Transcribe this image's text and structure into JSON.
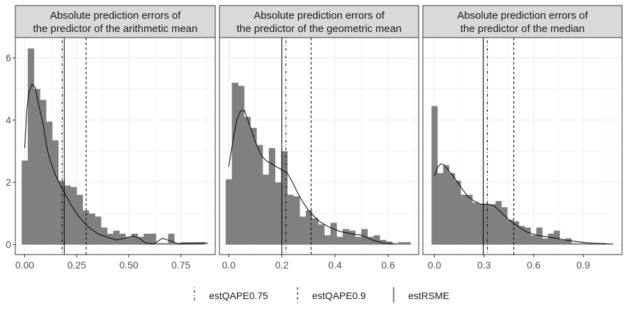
{
  "chart_data": [
    {
      "type": "bar",
      "title_lines": [
        "Absolute prediction errors of",
        "the predictor of the arithmetic mean"
      ],
      "bin_width": 0.0293,
      "bin_start": -0.0146,
      "values": [
        2.7,
        6.3,
        5.0,
        4.65,
        3.95,
        3.35,
        2.05,
        1.9,
        1.85,
        1.6,
        1.1,
        1.0,
        0.9,
        0.55,
        0.35,
        0.45,
        0.35,
        0.25,
        0.35,
        0.25,
        0.35,
        0.35,
        0.05,
        0.05,
        0.35,
        0.05,
        0.08,
        0.08,
        0.08,
        0.08
      ],
      "density": [
        [
          0.0,
          3.1
        ],
        [
          0.01,
          4.3
        ],
        [
          0.02,
          4.9
        ],
        [
          0.035,
          5.15
        ],
        [
          0.05,
          5.05
        ],
        [
          0.07,
          4.4
        ],
        [
          0.09,
          3.8
        ],
        [
          0.11,
          3.0
        ],
        [
          0.13,
          2.55
        ],
        [
          0.15,
          2.2
        ],
        [
          0.18,
          1.8
        ],
        [
          0.2,
          1.55
        ],
        [
          0.23,
          1.2
        ],
        [
          0.26,
          0.9
        ],
        [
          0.3,
          0.6
        ],
        [
          0.35,
          0.35
        ],
        [
          0.4,
          0.23
        ],
        [
          0.44,
          0.15
        ],
        [
          0.48,
          0.2
        ],
        [
          0.52,
          0.28
        ],
        [
          0.55,
          0.2
        ],
        [
          0.58,
          0.05
        ],
        [
          0.62,
          0.02
        ],
        [
          0.66,
          0.2
        ],
        [
          0.7,
          0.12
        ],
        [
          0.74,
          0.02
        ],
        [
          0.8,
          0.03
        ],
        [
          0.88,
          0.05
        ]
      ],
      "vlines": {
        "estQAPE0.75": 0.18,
        "estQAPE0.9": 0.295,
        "estRSME": 0.19
      },
      "xlim": [
        -0.045,
        0.915
      ],
      "ylim": [
        -0.32,
        6.65
      ],
      "x_ticks": [
        0.0,
        0.25,
        0.5,
        0.75
      ],
      "x_tick_labels": [
        "0.00",
        "0.25",
        "0.50",
        "0.75"
      ],
      "y_ticks": [
        0,
        2,
        4,
        6
      ],
      "y_tick_labels": [
        "0",
        "2",
        "4",
        "6"
      ]
    },
    {
      "type": "bar",
      "title_lines": [
        "Absolute prediction errors of",
        "the predictor of the geometric mean"
      ],
      "bin_width": 0.0232,
      "bin_start": -0.0116,
      "values": [
        2.1,
        5.2,
        5.1,
        4.1,
        3.75,
        3.2,
        2.25,
        3.1,
        2.0,
        3.0,
        1.6,
        1.55,
        0.9,
        1.1,
        0.85,
        0.65,
        0.3,
        0.7,
        0.25,
        0.5,
        0.45,
        0.25,
        0.5,
        0.25,
        0.3,
        0.15,
        0.1,
        0.05,
        0.08,
        0.08
      ],
      "density": [
        [
          0.0,
          2.5
        ],
        [
          0.015,
          3.3
        ],
        [
          0.03,
          4.0
        ],
        [
          0.045,
          4.3
        ],
        [
          0.06,
          4.3
        ],
        [
          0.08,
          3.8
        ],
        [
          0.1,
          3.3
        ],
        [
          0.12,
          2.9
        ],
        [
          0.14,
          2.7
        ],
        [
          0.16,
          2.6
        ],
        [
          0.18,
          2.5
        ],
        [
          0.2,
          2.4
        ],
        [
          0.22,
          2.3
        ],
        [
          0.24,
          2.0
        ],
        [
          0.26,
          1.65
        ],
        [
          0.28,
          1.35
        ],
        [
          0.3,
          1.1
        ],
        [
          0.34,
          0.75
        ],
        [
          0.38,
          0.55
        ],
        [
          0.42,
          0.42
        ],
        [
          0.46,
          0.35
        ],
        [
          0.5,
          0.3
        ],
        [
          0.54,
          0.15
        ],
        [
          0.58,
          0.05
        ],
        [
          0.62,
          0.02
        ]
      ],
      "vlines": {
        "estQAPE0.75": 0.215,
        "estQAPE0.9": 0.31,
        "estRSME": 0.2
      },
      "xlim": [
        -0.035,
        0.715
      ],
      "ylim": [
        -0.32,
        6.65
      ],
      "x_ticks": [
        0.0,
        0.2,
        0.4,
        0.6
      ],
      "x_tick_labels": [
        "0.0",
        "0.2",
        "0.4",
        "0.6"
      ],
      "y_ticks": [
        0,
        2,
        4,
        6
      ],
      "y_tick_labels": [
        "0",
        "2",
        "4",
        "6"
      ]
    },
    {
      "type": "bar",
      "title_lines": [
        "Absolute prediction errors of",
        "the predictor of the median"
      ],
      "bin_width": 0.0352,
      "bin_start": -0.0176,
      "values": [
        4.45,
        2.3,
        2.55,
        2.3,
        2.05,
        1.6,
        1.6,
        1.35,
        1.3,
        1.3,
        1.3,
        1.4,
        1.2,
        0.8,
        0.75,
        0.6,
        0.55,
        0.3,
        0.55,
        0.2,
        0.35,
        0.45,
        0.15,
        0.2,
        0.05,
        0.05,
        0.05,
        0.05,
        0.05,
        0.05
      ],
      "density": [
        [
          0.0,
          2.2
        ],
        [
          0.02,
          2.5
        ],
        [
          0.04,
          2.6
        ],
        [
          0.06,
          2.55
        ],
        [
          0.09,
          2.35
        ],
        [
          0.12,
          2.15
        ],
        [
          0.16,
          1.85
        ],
        [
          0.2,
          1.55
        ],
        [
          0.24,
          1.4
        ],
        [
          0.28,
          1.3
        ],
        [
          0.32,
          1.3
        ],
        [
          0.36,
          1.25
        ],
        [
          0.4,
          1.05
        ],
        [
          0.45,
          0.8
        ],
        [
          0.5,
          0.6
        ],
        [
          0.56,
          0.4
        ],
        [
          0.62,
          0.3
        ],
        [
          0.68,
          0.25
        ],
        [
          0.74,
          0.2
        ],
        [
          0.8,
          0.14
        ],
        [
          0.86,
          0.1
        ],
        [
          0.92,
          0.06
        ],
        [
          0.98,
          0.04
        ],
        [
          1.04,
          0.02
        ],
        [
          1.08,
          0.02
        ]
      ],
      "vlines": {
        "estQAPE0.75": 0.32,
        "estQAPE0.9": 0.48,
        "estRSME": 0.295
      },
      "xlim": [
        -0.07,
        1.135
      ],
      "ylim": [
        -0.32,
        6.65
      ],
      "x_ticks": [
        0.0,
        0.3,
        0.6,
        0.9
      ],
      "x_tick_labels": [
        "0.0",
        "0.3",
        "0.6",
        "0.9"
      ],
      "y_ticks": [
        0,
        2,
        4,
        6
      ],
      "y_tick_labels": [
        "0",
        "2",
        "4",
        "6"
      ]
    }
  ],
  "legend": {
    "items": [
      {
        "label": "estQAPE0.75",
        "dash": "dotdash"
      },
      {
        "label": "estQAPE0.9",
        "dash": "dashed"
      },
      {
        "label": "estRSME",
        "dash": "solid"
      }
    ]
  },
  "colors": {
    "bar": "#808080",
    "panel_background": "#ffffff",
    "grid": "#ebebeb",
    "strip": "#d9d9d9",
    "border": "#333333",
    "line": "#000000"
  }
}
